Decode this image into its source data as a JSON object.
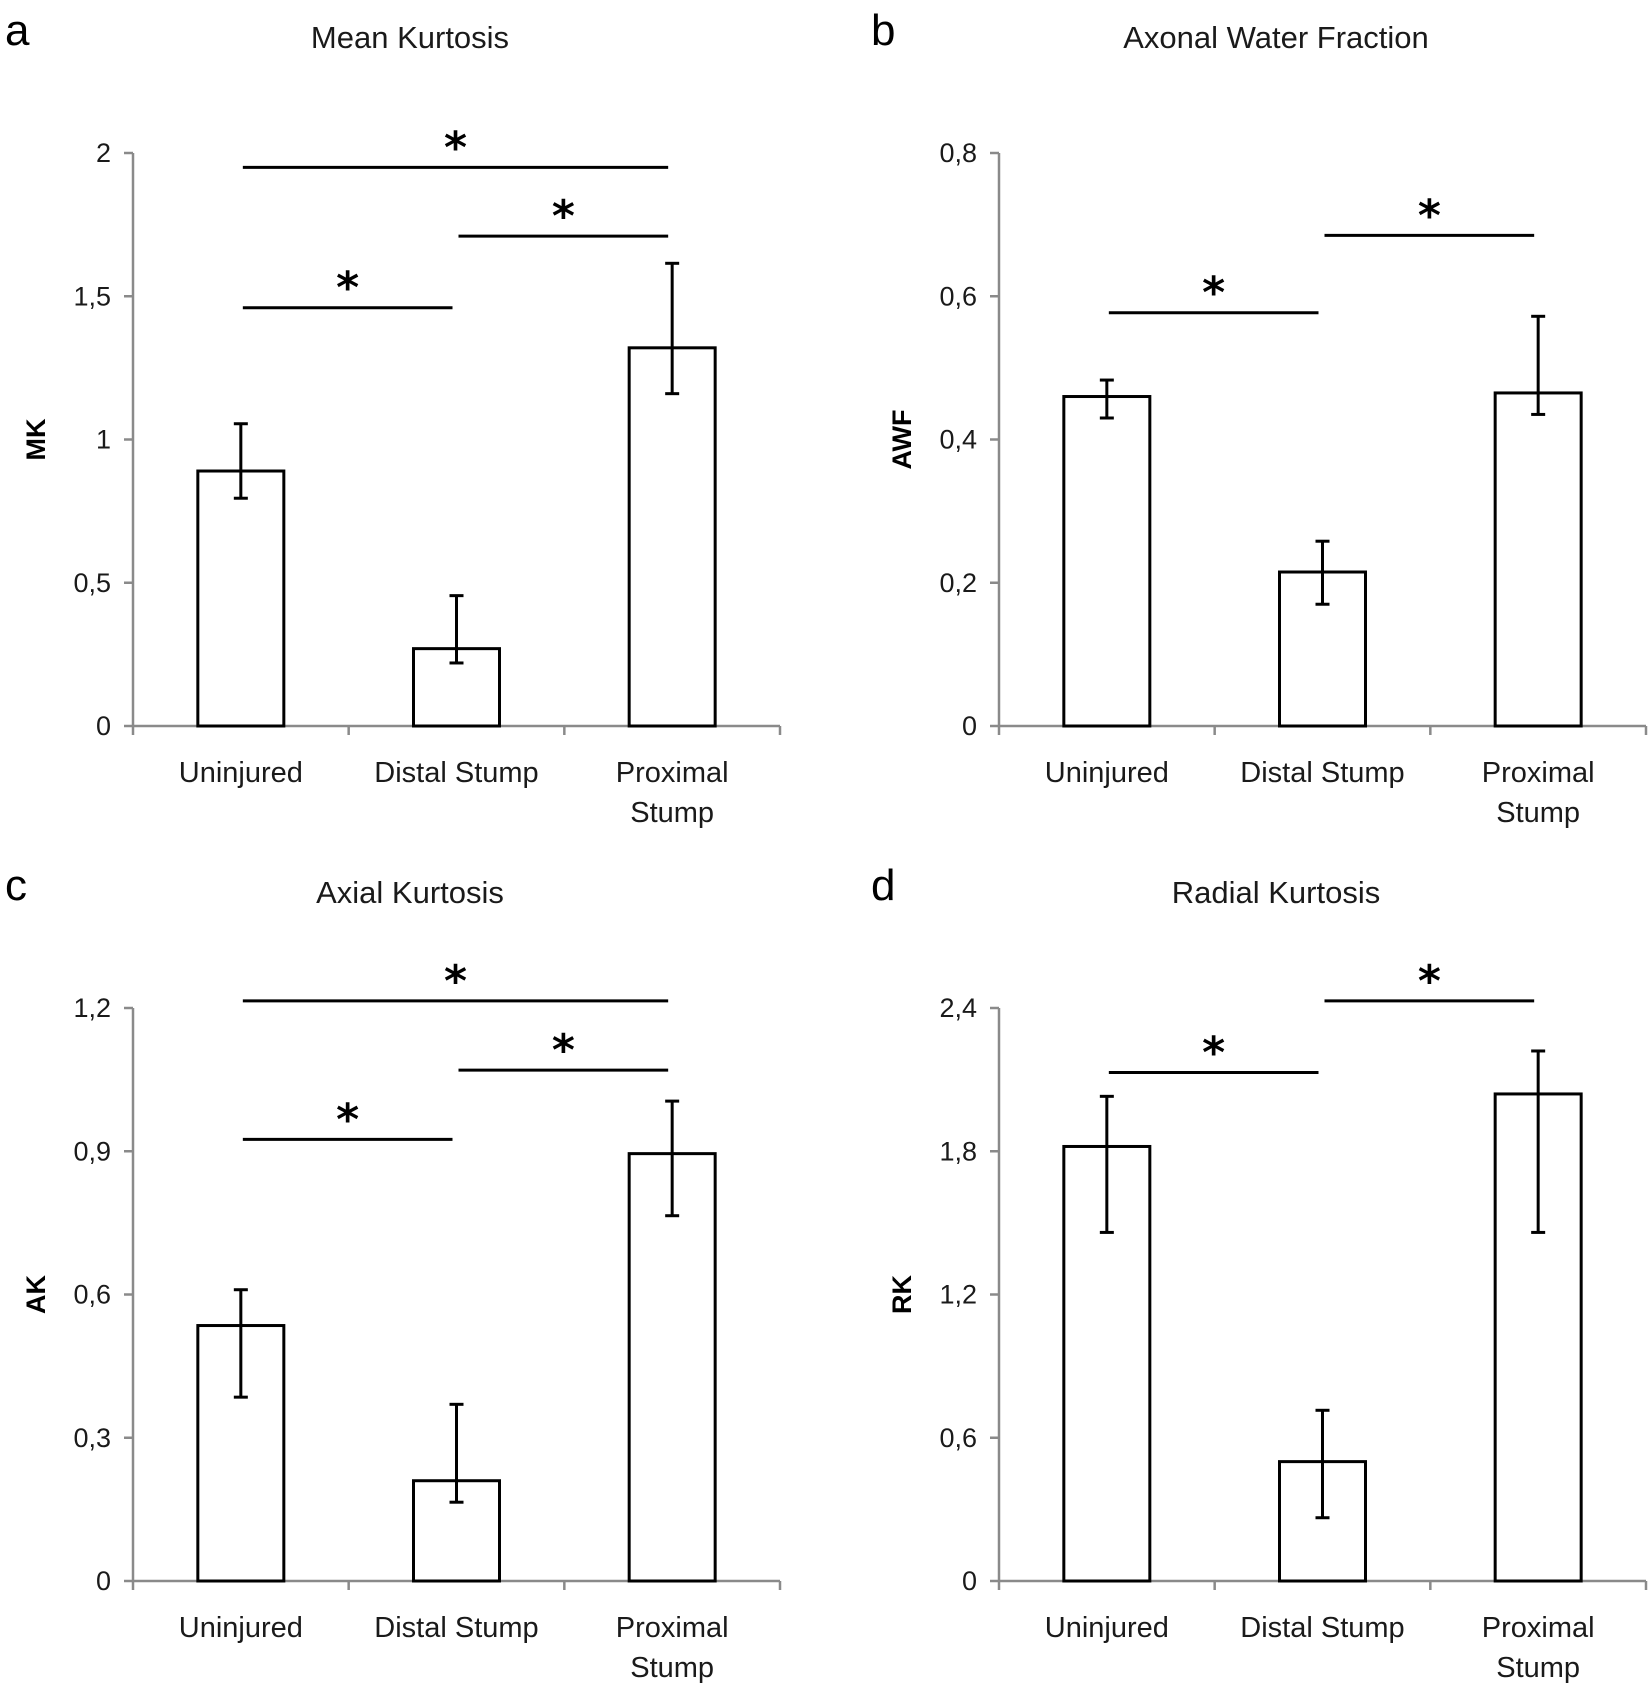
{
  "chart_data": [
    {
      "panel": "a",
      "type": "bar",
      "title": "Mean Kurtosis",
      "ylabel": "MK",
      "xlabel": "",
      "categories": [
        "Uninjured",
        "Distal Stump",
        "Proximal\nStump"
      ],
      "values": [
        0.89,
        0.27,
        1.32
      ],
      "error_low": [
        0.795,
        0.22,
        1.16
      ],
      "error_high": [
        1.055,
        0.455,
        1.615
      ],
      "ylim": [
        0,
        2
      ],
      "yticks": [
        0,
        0.5,
        1,
        1.5,
        2
      ],
      "ytick_labels": [
        "0",
        "0,5",
        "1",
        "1,5",
        "2"
      ],
      "significance": [
        {
          "from": 0,
          "to": 1,
          "y": 1.46,
          "label": "*"
        },
        {
          "from": 1,
          "to": 2,
          "y": 1.71,
          "label": "*"
        },
        {
          "from": 0,
          "to": 2,
          "y": 1.95,
          "label": "*"
        }
      ]
    },
    {
      "panel": "b",
      "type": "bar",
      "title": "Axonal Water Fraction",
      "ylabel": "AWF",
      "xlabel": "",
      "categories": [
        "Uninjured",
        "Distal Stump",
        "Proximal\nStump"
      ],
      "values": [
        0.46,
        0.215,
        0.465
      ],
      "error_low": [
        0.43,
        0.17,
        0.435
      ],
      "error_high": [
        0.483,
        0.258,
        0.572
      ],
      "ylim": [
        0,
        0.8
      ],
      "yticks": [
        0,
        0.2,
        0.4,
        0.6,
        0.8
      ],
      "ytick_labels": [
        "0",
        "0,2",
        "0,4",
        "0,6",
        "0,8"
      ],
      "significance": [
        {
          "from": 0,
          "to": 1,
          "y": 0.577,
          "label": "*"
        },
        {
          "from": 1,
          "to": 2,
          "y": 0.685,
          "label": "*"
        }
      ]
    },
    {
      "panel": "c",
      "type": "bar",
      "title": "Axial Kurtosis",
      "ylabel": "AK",
      "xlabel": "",
      "categories": [
        "Uninjured",
        "Distal Stump",
        "Proximal\nStump"
      ],
      "values": [
        0.535,
        0.21,
        0.895
      ],
      "error_low": [
        0.385,
        0.165,
        0.765
      ],
      "error_high": [
        0.61,
        0.37,
        1.005
      ],
      "ylim": [
        0,
        1.2
      ],
      "yticks": [
        0,
        0.3,
        0.6,
        0.9,
        1.2
      ],
      "ytick_labels": [
        "0",
        "0,3",
        "0,6",
        "0,9",
        "1,2"
      ],
      "significance": [
        {
          "from": 0,
          "to": 1,
          "y": 0.925,
          "label": "*"
        },
        {
          "from": 1,
          "to": 2,
          "y": 1.07,
          "label": "*"
        },
        {
          "from": 0,
          "to": 2,
          "y": 1.215,
          "label": "*"
        }
      ]
    },
    {
      "panel": "d",
      "type": "bar",
      "title": "Radial Kurtosis",
      "ylabel": "RK",
      "xlabel": "",
      "categories": [
        "Uninjured",
        "Distal Stump",
        "Proximal\nStump"
      ],
      "values": [
        1.82,
        0.5,
        2.04
      ],
      "error_low": [
        1.46,
        0.265,
        1.46
      ],
      "error_high": [
        2.03,
        0.715,
        2.22
      ],
      "ylim": [
        0,
        2.4
      ],
      "yticks": [
        0,
        0.6,
        1.2,
        1.8,
        2.4
      ],
      "ytick_labels": [
        "0",
        "0,6",
        "1,2",
        "1,8",
        "2,4"
      ],
      "significance": [
        {
          "from": 0,
          "to": 1,
          "y": 2.13,
          "label": "*"
        },
        {
          "from": 1,
          "to": 2,
          "y": 2.43,
          "label": "*"
        }
      ]
    }
  ]
}
